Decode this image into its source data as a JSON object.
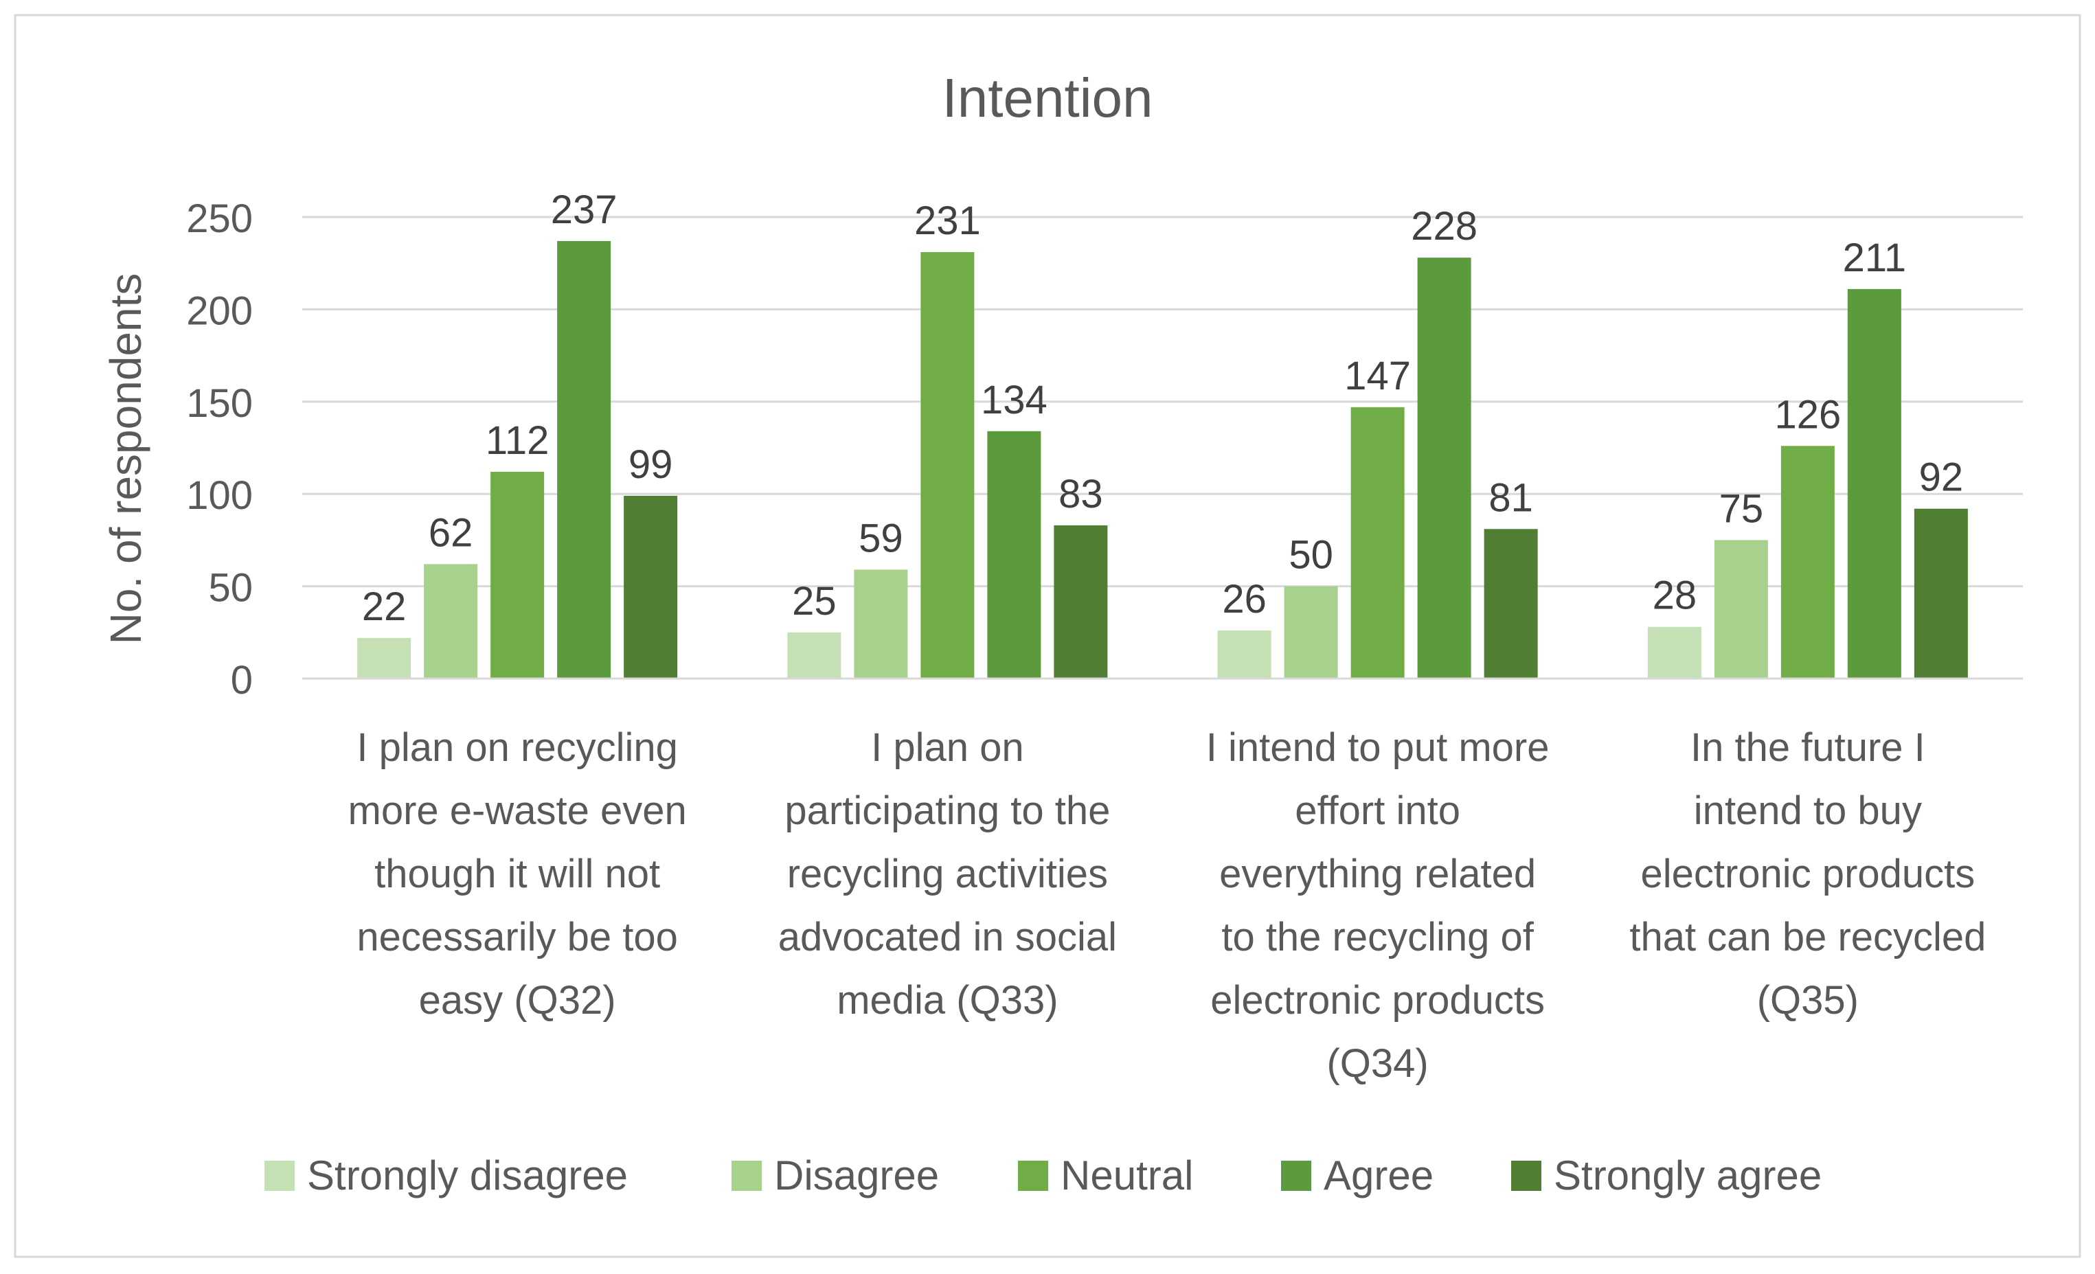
{
  "chart_data": {
    "type": "bar",
    "title": "Intention",
    "ylabel": "No. of respondents",
    "xlabel": "",
    "ylim": [
      0,
      250
    ],
    "yticks": [
      0,
      50,
      100,
      150,
      200,
      250
    ],
    "grid": true,
    "legend_position": "bottom",
    "categories": [
      [
        "I plan on recycling",
        "more e-waste even",
        "though it will not",
        "necessarily be too",
        "easy (Q32)"
      ],
      [
        "I plan on",
        "participating to the",
        "recycling activities",
        "advocated in social",
        "media (Q33)"
      ],
      [
        "I intend to put more",
        "effort into",
        "everything related",
        "to the recycling of",
        "electronic products",
        "(Q34)"
      ],
      [
        "In the future I",
        "intend to buy",
        "electronic products",
        "that can be recycled",
        "(Q35)"
      ]
    ],
    "series": [
      {
        "name": "Strongly disagree",
        "color": "#c5e0b4",
        "values": [
          22,
          25,
          26,
          28
        ]
      },
      {
        "name": "Disagree",
        "color": "#a9d18e",
        "values": [
          62,
          59,
          50,
          75
        ]
      },
      {
        "name": "Neutral",
        "color": "#70ad47",
        "values": [
          112,
          231,
          147,
          126
        ]
      },
      {
        "name": "Agree",
        "color": "#5b9b3e",
        "values": [
          237,
          134,
          228,
          211
        ]
      },
      {
        "name": "Strongly agree",
        "color": "#507e32",
        "values": [
          99,
          83,
          81,
          92
        ]
      }
    ]
  }
}
